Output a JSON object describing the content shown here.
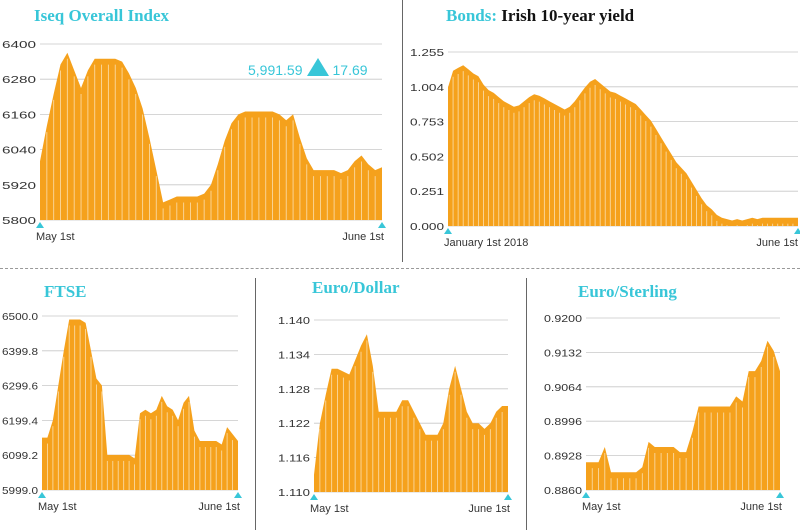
{
  "colors": {
    "fill": "#f5a11c",
    "stripe": "#fce6bf",
    "title": "#38c6d8",
    "grid": "#c8c8c8",
    "text": "#333333"
  },
  "iseq": {
    "change_value": "5,991.59",
    "change_delta": "17.69"
  },
  "chart_data": [
    {
      "id": "iseq",
      "type": "area",
      "title": "Iseq Overall Index",
      "subtitle": "",
      "yticks": [
        "6400",
        "6280",
        "6160",
        "6040",
        "5920",
        "5800"
      ],
      "ylim": [
        5800,
        6400
      ],
      "xlabels": [
        "May 1st",
        "June 1st"
      ],
      "values": [
        6000,
        6120,
        6230,
        6330,
        6370,
        6310,
        6250,
        6310,
        6350,
        6350,
        6350,
        6350,
        6340,
        6300,
        6250,
        6180,
        6080,
        5970,
        5860,
        5870,
        5880,
        5880,
        5880,
        5880,
        5890,
        5920,
        5990,
        6070,
        6130,
        6160,
        6170,
        6170,
        6170,
        6170,
        6170,
        6160,
        6140,
        6160,
        6080,
        6010,
        5970,
        5970,
        5970,
        5970,
        5960,
        5970,
        6000,
        6020,
        5990,
        5970,
        5980
      ]
    },
    {
      "id": "bonds",
      "type": "area",
      "title": "Bonds:",
      "subtitle": "Irish 10-year yield",
      "yticks": [
        "1.255",
        "1.004",
        "0.753",
        "0.502",
        "0.251",
        "0.000"
      ],
      "ylim": [
        0,
        1.255
      ],
      "xlabels": [
        "January 1st 2018",
        "June 1st"
      ],
      "values": [
        1.0,
        1.12,
        1.14,
        1.16,
        1.13,
        1.1,
        1.08,
        1.02,
        0.98,
        0.96,
        0.93,
        0.9,
        0.88,
        0.86,
        0.87,
        0.9,
        0.93,
        0.95,
        0.94,
        0.92,
        0.9,
        0.88,
        0.86,
        0.84,
        0.86,
        0.9,
        0.95,
        1.0,
        1.04,
        1.06,
        1.03,
        1.0,
        0.97,
        0.96,
        0.94,
        0.92,
        0.9,
        0.88,
        0.84,
        0.8,
        0.76,
        0.7,
        0.64,
        0.58,
        0.52,
        0.46,
        0.42,
        0.38,
        0.32,
        0.26,
        0.2,
        0.15,
        0.12,
        0.08,
        0.06,
        0.05,
        0.04,
        0.05,
        0.04,
        0.05,
        0.06,
        0.05,
        0.06,
        0.06,
        0.06,
        0.06,
        0.06,
        0.06,
        0.06,
        0.06
      ]
    },
    {
      "id": "ftse",
      "type": "area",
      "title": "FTSE",
      "subtitle": "",
      "yticks": [
        "6500.0",
        "6399.8",
        "6299.6",
        "6199.4",
        "6099.2",
        "5999.0"
      ],
      "ylim": [
        5999.0,
        6500.0
      ],
      "xlabels": [
        "May 1st",
        "June 1st"
      ],
      "values": [
        6150,
        6150,
        6200,
        6300,
        6400,
        6490,
        6490,
        6490,
        6480,
        6400,
        6320,
        6300,
        6100,
        6100,
        6100,
        6100,
        6100,
        6090,
        6220,
        6230,
        6220,
        6230,
        6270,
        6240,
        6230,
        6200,
        6250,
        6270,
        6170,
        6140,
        6140,
        6140,
        6140,
        6130,
        6180,
        6160,
        6140
      ]
    },
    {
      "id": "eurusd",
      "type": "area",
      "title": "Euro/Dollar",
      "subtitle": "",
      "yticks": [
        "1.140",
        "1.134",
        "1.128",
        "1.122",
        "1.116",
        "1.110"
      ],
      "ylim": [
        1.11,
        1.14
      ],
      "xlabels": [
        "May 1st",
        "June 1st"
      ],
      "values": [
        1.113,
        1.122,
        1.127,
        1.1315,
        1.1315,
        1.131,
        1.1305,
        1.133,
        1.1355,
        1.1375,
        1.132,
        1.124,
        1.124,
        1.124,
        1.124,
        1.126,
        1.126,
        1.124,
        1.122,
        1.12,
        1.12,
        1.12,
        1.122,
        1.128,
        1.132,
        1.128,
        1.124,
        1.122,
        1.122,
        1.121,
        1.122,
        1.124,
        1.125,
        1.125
      ]
    },
    {
      "id": "eurgbp",
      "type": "area",
      "title": "Euro/Sterling",
      "subtitle": "",
      "yticks": [
        "0.9200",
        "0.9132",
        "0.9064",
        "0.8996",
        "0.8928",
        "0.8860"
      ],
      "ylim": [
        0.886,
        0.92
      ],
      "xlabels": [
        "May 1st",
        "June 1st"
      ],
      "values": [
        0.8915,
        0.8915,
        0.8915,
        0.8945,
        0.8895,
        0.8895,
        0.8895,
        0.8895,
        0.8895,
        0.8905,
        0.8955,
        0.8945,
        0.8945,
        0.8945,
        0.8945,
        0.8935,
        0.8935,
        0.8975,
        0.9025,
        0.9025,
        0.9025,
        0.9025,
        0.9025,
        0.9025,
        0.9045,
        0.9035,
        0.9095,
        0.9095,
        0.9115,
        0.9155,
        0.9135,
        0.9095
      ]
    }
  ]
}
